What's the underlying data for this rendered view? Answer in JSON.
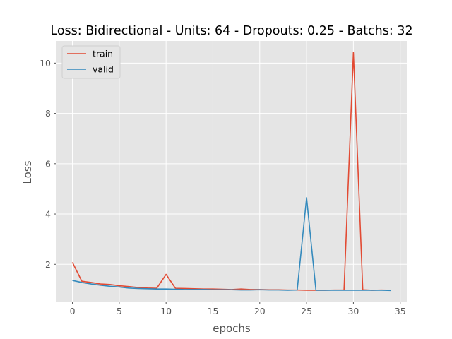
{
  "chart_data": {
    "type": "line",
    "title": "Loss: Bidirectional - Units: 64 - Dropouts: 0.25 - Batchs: 32",
    "xlabel": "epochs",
    "ylabel": "Loss",
    "xlim": [
      -1.7,
      35.7
    ],
    "ylim": [
      0.52,
      10.88
    ],
    "xticks": [
      0,
      5,
      10,
      15,
      20,
      25,
      30,
      35
    ],
    "yticks": [
      2,
      4,
      6,
      8,
      10
    ],
    "grid": true,
    "legend_placement": "top-left",
    "x": [
      0,
      1,
      2,
      3,
      4,
      5,
      6,
      7,
      8,
      9,
      10,
      11,
      12,
      13,
      14,
      15,
      16,
      17,
      18,
      19,
      20,
      21,
      22,
      23,
      24,
      25,
      26,
      27,
      28,
      29,
      30,
      31,
      32,
      33,
      34
    ],
    "series": [
      {
        "name": "train",
        "color": "#E24A33",
        "values": [
          2.08,
          1.33,
          1.28,
          1.22,
          1.2,
          1.15,
          1.12,
          1.08,
          1.06,
          1.05,
          1.6,
          1.05,
          1.04,
          1.03,
          1.02,
          1.02,
          1.01,
          1.0,
          1.02,
          1.0,
          1.0,
          0.99,
          0.99,
          0.98,
          0.98,
          0.97,
          0.97,
          0.97,
          0.98,
          0.98,
          10.42,
          0.99,
          0.97,
          0.98,
          0.97
        ]
      },
      {
        "name": "valid",
        "color": "#348ABD",
        "values": [
          1.36,
          1.28,
          1.22,
          1.17,
          1.13,
          1.1,
          1.06,
          1.04,
          1.03,
          1.02,
          1.02,
          1.01,
          1.0,
          1.0,
          1.0,
          0.99,
          0.99,
          0.99,
          0.98,
          0.98,
          0.99,
          0.98,
          0.98,
          0.97,
          0.98,
          4.65,
          0.97,
          0.97,
          0.97,
          0.97,
          0.97,
          0.97,
          0.97,
          0.97,
          0.96
        ]
      }
    ]
  }
}
